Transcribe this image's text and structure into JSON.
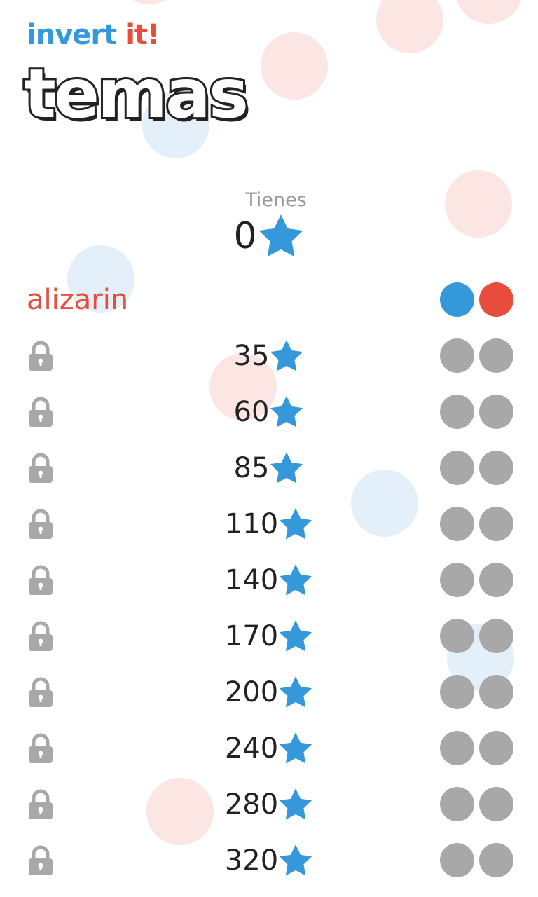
{
  "header": {
    "app_title_word1": "invert",
    "app_title_word2": "it!",
    "page_title": "temas"
  },
  "balance": {
    "label": "Tienes",
    "count": "0",
    "icon": "star-icon"
  },
  "colors": {
    "accent_blue": "#3498db",
    "accent_red": "#e74c3c",
    "locked_gray": "#a8a8a8",
    "text_dark": "#222222"
  },
  "themes": [
    {
      "name": "alizarin",
      "locked": false,
      "swatches": [
        "#3498db",
        "#e74c3c"
      ]
    },
    {
      "price": "35",
      "locked": true,
      "swatches": [
        "#a8a8a8",
        "#a8a8a8"
      ]
    },
    {
      "price": "60",
      "locked": true,
      "swatches": [
        "#a8a8a8",
        "#a8a8a8"
      ]
    },
    {
      "price": "85",
      "locked": true,
      "swatches": [
        "#a8a8a8",
        "#a8a8a8"
      ]
    },
    {
      "price": "110",
      "locked": true,
      "swatches": [
        "#a8a8a8",
        "#a8a8a8"
      ]
    },
    {
      "price": "140",
      "locked": true,
      "swatches": [
        "#a8a8a8",
        "#a8a8a8"
      ]
    },
    {
      "price": "170",
      "locked": true,
      "swatches": [
        "#a8a8a8",
        "#a8a8a8"
      ]
    },
    {
      "price": "200",
      "locked": true,
      "swatches": [
        "#a8a8a8",
        "#a8a8a8"
      ]
    },
    {
      "price": "240",
      "locked": true,
      "swatches": [
        "#a8a8a8",
        "#a8a8a8"
      ]
    },
    {
      "price": "280",
      "locked": true,
      "swatches": [
        "#a8a8a8",
        "#a8a8a8"
      ]
    },
    {
      "price": "320",
      "locked": true,
      "swatches": [
        "#a8a8a8",
        "#a8a8a8"
      ]
    }
  ]
}
